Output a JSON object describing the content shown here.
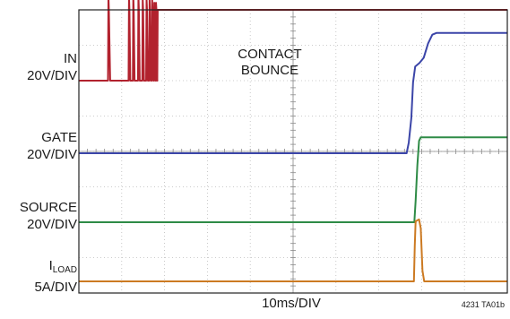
{
  "chart_data": {
    "type": "line",
    "title": "",
    "xlabel": "10ms/DIV",
    "ylabel": "",
    "x_unit": "ms",
    "x_divisions": 10,
    "y_divisions": 8,
    "xlim": [
      0,
      100
    ],
    "grid": true,
    "series": [
      {
        "name": "IN",
        "scale": "20V/DIV",
        "color": "#b2222e",
        "points": [
          [
            0,
            0
          ],
          [
            6.8,
            0
          ],
          [
            6.9,
            2.4
          ],
          [
            7.0,
            2.0
          ],
          [
            7.3,
            0
          ],
          [
            11.6,
            0
          ],
          [
            11.7,
            2.4
          ],
          [
            11.8,
            2.0
          ],
          [
            12.0,
            0
          ],
          [
            12.6,
            0
          ],
          [
            12.7,
            2.4
          ],
          [
            12.8,
            2.0
          ],
          [
            13.0,
            0
          ],
          [
            13.8,
            0
          ],
          [
            13.9,
            2.4
          ],
          [
            14.0,
            2.0
          ],
          [
            14.2,
            0
          ],
          [
            14.8,
            0
          ],
          [
            14.9,
            2.3
          ],
          [
            15.0,
            2.0
          ],
          [
            15.2,
            0
          ],
          [
            15.7,
            0
          ],
          [
            15.8,
            2.3
          ],
          [
            15.9,
            2.0
          ],
          [
            16.1,
            0
          ],
          [
            16.4,
            0
          ],
          [
            16.5,
            2.3
          ],
          [
            16.6,
            2.0
          ],
          [
            16.8,
            0
          ],
          [
            17.0,
            0
          ],
          [
            17.1,
            2.3
          ],
          [
            17.2,
            2.0
          ],
          [
            17.4,
            0
          ],
          [
            17.5,
            0
          ],
          [
            17.6,
            2.2
          ],
          [
            17.7,
            2.0
          ],
          [
            17.85,
            0
          ],
          [
            17.9,
            0
          ],
          [
            18.0,
            2.2
          ],
          [
            18.1,
            2.0
          ],
          [
            18.2,
            0
          ],
          [
            18.3,
            0
          ],
          [
            18.4,
            2.0
          ],
          [
            100,
            2.0
          ]
        ]
      },
      {
        "name": "GATE",
        "scale": "20V/DIV",
        "color": "#3b45a8",
        "points": [
          [
            0,
            0
          ],
          [
            76.5,
            0
          ],
          [
            77.0,
            0.3
          ],
          [
            77.6,
            1.0
          ],
          [
            78.0,
            2.0
          ],
          [
            78.5,
            2.45
          ],
          [
            79.5,
            2.55
          ],
          [
            80.5,
            2.7
          ],
          [
            81.5,
            3.1
          ],
          [
            82.5,
            3.35
          ],
          [
            83.5,
            3.4
          ],
          [
            100,
            3.4
          ]
        ]
      },
      {
        "name": "SOURCE",
        "scale": "20V/DIV",
        "color": "#2e8b46",
        "points": [
          [
            0,
            0
          ],
          [
            78.3,
            0
          ],
          [
            78.6,
            0.6
          ],
          [
            79.0,
            1.6
          ],
          [
            79.4,
            2.3
          ],
          [
            79.8,
            2.4
          ],
          [
            100,
            2.4
          ]
        ]
      },
      {
        "name": "ILOAD",
        "scale": "5A/DIV",
        "color": "#cc7a22",
        "points": [
          [
            0,
            0
          ],
          [
            78.2,
            0
          ],
          [
            78.4,
            1.0
          ],
          [
            78.6,
            1.7
          ],
          [
            79.4,
            1.75
          ],
          [
            79.8,
            1.5
          ],
          [
            80.2,
            0.3
          ],
          [
            80.6,
            0
          ],
          [
            100,
            0
          ]
        ]
      }
    ]
  },
  "labels": {
    "in_name": "IN",
    "in_scale": "20V/DIV",
    "gate_name": "GATE",
    "gate_scale": "20V/DIV",
    "source_name": "SOURCE",
    "source_scale": "20V/DIV",
    "iload_base": "I",
    "iload_sub": "LOAD",
    "iload_scale": "5A/DIV",
    "annotation_line1": "CONTACT",
    "annotation_line2": "BOUNCE",
    "timebase": "10ms/DIV",
    "figure_id": "4231 TA01b"
  }
}
